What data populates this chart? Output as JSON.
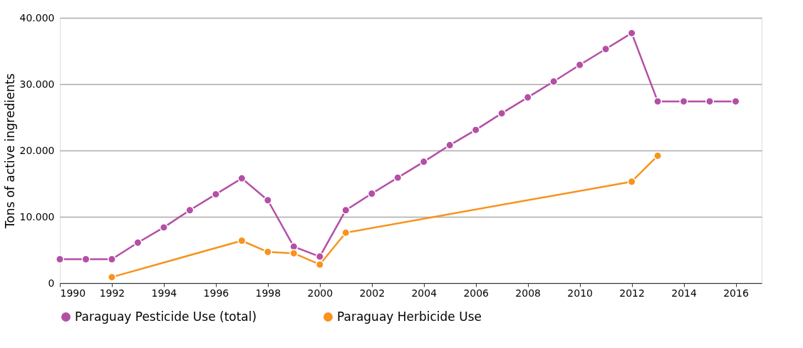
{
  "chart_data": {
    "type": "line",
    "ylabel": "Tons of active ingredients",
    "xlim": [
      1990,
      2017
    ],
    "xticks": [
      1990,
      1992,
      1994,
      1996,
      1998,
      2000,
      2002,
      2004,
      2006,
      2008,
      2010,
      2012,
      2014,
      2016
    ],
    "ylim": [
      0,
      40000
    ],
    "yticks": [
      {
        "value": 0,
        "label": "0"
      },
      {
        "value": 10000,
        "label": "10.000"
      },
      {
        "value": 20000,
        "label": "20.000"
      },
      {
        "value": 30000,
        "label": "30.000"
      },
      {
        "value": 40000,
        "label": "40.000"
      }
    ],
    "grid": "y",
    "legend": "bottom",
    "marker": "circle",
    "line_style": "solid",
    "series": [
      {
        "name": "Paraguay Pesticide Use (total)",
        "color": "#b44fa6",
        "x": [
          1990,
          1991,
          1992,
          1993,
          1994,
          1995,
          1996,
          1997,
          1998,
          1999,
          2000,
          2001,
          2002,
          2003,
          2004,
          2005,
          2006,
          2007,
          2008,
          2009,
          2010,
          2011,
          2012,
          2013,
          2014,
          2015,
          2016
        ],
        "values": [
          3600,
          3600,
          3600,
          6100,
          8400,
          11000,
          13400,
          15800,
          12500,
          5500,
          4000,
          11000,
          13500,
          15900,
          18300,
          20800,
          23100,
          25600,
          28000,
          30400,
          32900,
          35300,
          37700,
          27400,
          27400,
          27400,
          27400
        ]
      },
      {
        "name": "Paraguay Herbicide Use",
        "color": "#f7931e",
        "x": [
          1992,
          1997,
          1998,
          1999,
          2000,
          2001,
          2012,
          2013
        ],
        "values": [
          900,
          6400,
          4700,
          4500,
          2800,
          7600,
          15300,
          19200
        ]
      }
    ]
  }
}
